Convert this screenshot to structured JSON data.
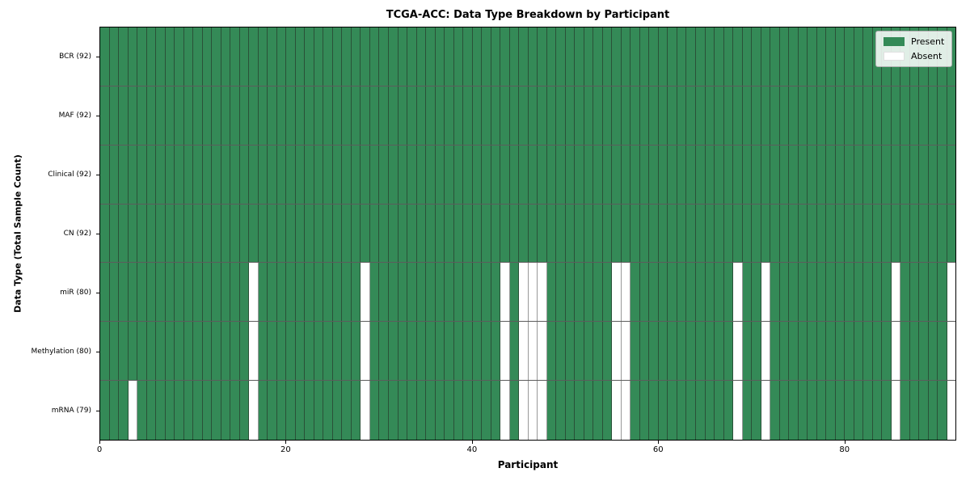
{
  "chart_data": {
    "type": "heatmap",
    "title": "TCGA-ACC: Data Type Breakdown by Participant",
    "xlabel": "Participant",
    "ylabel": "Data Type (Total Sample Count)",
    "x_ticks": [
      0,
      20,
      40,
      60,
      80
    ],
    "x_range": [
      0,
      92
    ],
    "n_participants": 92,
    "grid": true,
    "legend_position": "upper right",
    "colors": {
      "present": "#348a57",
      "absent": "#ffffff"
    },
    "legend_entries": [
      {
        "label": "Present",
        "color": "#348a57"
      },
      {
        "label": "Absent",
        "color": "#ffffff"
      }
    ],
    "rows": [
      {
        "label": "BCR (92)",
        "data_type": "BCR",
        "present_count": 92,
        "absent_count": 0,
        "absent_participants": []
      },
      {
        "label": "MAF (92)",
        "data_type": "MAF",
        "present_count": 92,
        "absent_count": 0,
        "absent_participants": []
      },
      {
        "label": "Clinical (92)",
        "data_type": "Clinical",
        "present_count": 92,
        "absent_count": 0,
        "absent_participants": []
      },
      {
        "label": "CN (92)",
        "data_type": "CN",
        "present_count": 92,
        "absent_count": 0,
        "absent_participants": []
      },
      {
        "label": "miR (80)",
        "data_type": "miR",
        "present_count": 80,
        "absent_count": 12,
        "absent_participants": [
          16,
          28,
          43,
          45,
          46,
          47,
          55,
          56,
          68,
          71,
          85,
          91
        ]
      },
      {
        "label": "Methylation (80)",
        "data_type": "Methylation",
        "present_count": 80,
        "absent_count": 12,
        "absent_participants": [
          16,
          28,
          43,
          45,
          46,
          47,
          55,
          56,
          68,
          71,
          85,
          91
        ]
      },
      {
        "label": "mRNA (79)",
        "data_type": "mRNA",
        "present_count": 79,
        "absent_count": 13,
        "absent_participants": [
          3,
          16,
          28,
          43,
          45,
          46,
          47,
          55,
          56,
          68,
          71,
          85,
          91
        ]
      }
    ]
  }
}
